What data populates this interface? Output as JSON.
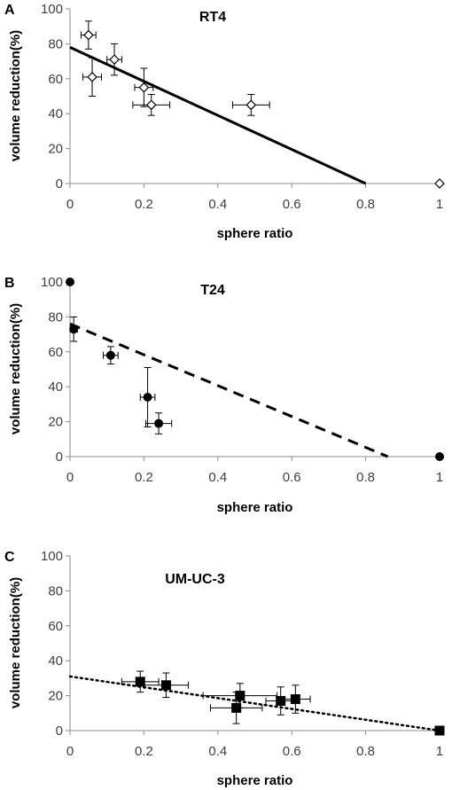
{
  "chart_data": [
    {
      "panel_letter": "A",
      "type": "scatter",
      "title": "RT4",
      "xlabel": "sphere ratio",
      "ylabel": "volume reduction(%)",
      "xlim": [
        0,
        1
      ],
      "ylim": [
        0,
        100
      ],
      "x_ticks": [
        "0",
        "0.2",
        "0.4",
        "0.6",
        "0.8",
        "1"
      ],
      "y_ticks": [
        "0",
        "20",
        "40",
        "60",
        "80",
        "100"
      ],
      "grid": false,
      "marker": "open-diamond",
      "trendline": {
        "style": "solid",
        "x": [
          0,
          0.8
        ],
        "y": [
          78,
          0
        ]
      },
      "points": [
        {
          "x": 0.05,
          "y": 85,
          "xerr": 0.02,
          "yerr": 8
        },
        {
          "x": 0.06,
          "y": 61,
          "xerr": 0.025,
          "yerr": 11
        },
        {
          "x": 0.12,
          "y": 71,
          "xerr": 0.02,
          "yerr": 9
        },
        {
          "x": 0.2,
          "y": 55,
          "xerr": 0.025,
          "yerr": 11
        },
        {
          "x": 0.22,
          "y": 45,
          "xerr": 0.05,
          "yerr": 6
        },
        {
          "x": 0.49,
          "y": 45,
          "xerr": 0.05,
          "yerr": 6
        },
        {
          "x": 1.0,
          "y": 0,
          "xerr": 0,
          "yerr": 0
        }
      ]
    },
    {
      "panel_letter": "B",
      "type": "scatter",
      "title": "T24",
      "xlabel": "sphere ratio",
      "ylabel": "volume reduction(%)",
      "xlim": [
        0,
        1
      ],
      "ylim": [
        0,
        100
      ],
      "x_ticks": [
        "0",
        "0.2",
        "0.4",
        "0.6",
        "0.8",
        "1"
      ],
      "y_ticks": [
        "0",
        "20",
        "40",
        "60",
        "80",
        "100"
      ],
      "grid": false,
      "marker": "filled-circle",
      "trendline": {
        "style": "dashed",
        "x": [
          0,
          0.86
        ],
        "y": [
          76,
          0
        ]
      },
      "points": [
        {
          "x": 0.0,
          "y": 100,
          "xerr": 0,
          "yerr": 0
        },
        {
          "x": 0.01,
          "y": 73,
          "xerr": 0.01,
          "yerr": 7
        },
        {
          "x": 0.11,
          "y": 58,
          "xerr": 0.02,
          "yerr": 5
        },
        {
          "x": 0.21,
          "y": 34,
          "xerr": 0.02,
          "yerr": 17
        },
        {
          "x": 0.24,
          "y": 19,
          "xerr": 0.035,
          "yerr": 6
        },
        {
          "x": 1.0,
          "y": 0,
          "xerr": 0,
          "yerr": 0
        }
      ]
    },
    {
      "panel_letter": "C",
      "type": "scatter",
      "title": "UM-UC-3",
      "xlabel": "sphere ratio",
      "ylabel": "volume reduction(%)",
      "xlim": [
        0,
        1
      ],
      "ylim": [
        0,
        100
      ],
      "x_ticks": [
        "0",
        "0.2",
        "0.4",
        "0.6",
        "0.8",
        "1"
      ],
      "y_ticks": [
        "0",
        "20",
        "40",
        "60",
        "80",
        "100"
      ],
      "grid": false,
      "marker": "filled-square",
      "trendline": {
        "style": "dotted",
        "x": [
          0,
          1
        ],
        "y": [
          31,
          0
        ]
      },
      "points": [
        {
          "x": 0.19,
          "y": 28,
          "xerr": 0.05,
          "yerr": 6
        },
        {
          "x": 0.26,
          "y": 26,
          "xerr": 0.06,
          "yerr": 7
        },
        {
          "x": 0.45,
          "y": 13,
          "xerr": 0.07,
          "yerr": 9
        },
        {
          "x": 0.46,
          "y": 20,
          "xerr": 0.1,
          "yerr": 7
        },
        {
          "x": 0.57,
          "y": 17,
          "xerr": 0.04,
          "yerr": 8
        },
        {
          "x": 0.61,
          "y": 18,
          "xerr": 0.04,
          "yerr": 8
        },
        {
          "x": 1.0,
          "y": 0,
          "xerr": 0,
          "yerr": 0
        }
      ]
    }
  ]
}
